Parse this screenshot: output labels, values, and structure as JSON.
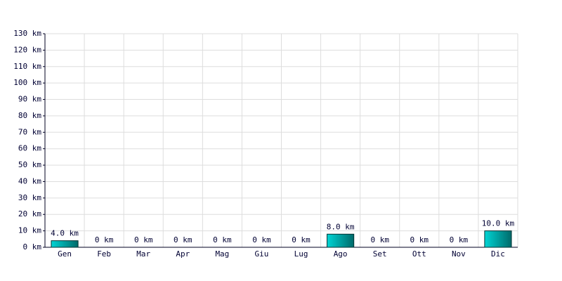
{
  "chart_data": {
    "type": "bar",
    "categories": [
      "Gen",
      "Feb",
      "Mar",
      "Apr",
      "Mag",
      "Giu",
      "Lug",
      "Ago",
      "Set",
      "Ott",
      "Nov",
      "Dic"
    ],
    "values": [
      4,
      0,
      0,
      0,
      0,
      0,
      0,
      8,
      0,
      0,
      0,
      10
    ],
    "value_labels": [
      "4.0 km",
      "0 km",
      "0 km",
      "0 km",
      "0 km",
      "0 km",
      "0 km",
      "8.0 km",
      "0 km",
      "0 km",
      "0 km",
      "10.0 km"
    ],
    "color": "#00d4d4",
    "ylim": [
      0,
      130
    ],
    "yticks": [
      {
        "value": 0,
        "label": "0 km"
      },
      {
        "value": 10,
        "label": "10 km"
      },
      {
        "value": 20,
        "label": "20 km"
      },
      {
        "value": 30,
        "label": "30 km"
      },
      {
        "value": 40,
        "label": "40 km"
      },
      {
        "value": 50,
        "label": "50 km"
      },
      {
        "value": 60,
        "label": "60 km"
      },
      {
        "value": 70,
        "label": "70 km"
      },
      {
        "value": 80,
        "label": "80 km"
      },
      {
        "value": 90,
        "label": "90 km"
      },
      {
        "value": 100,
        "label": "100 km"
      },
      {
        "value": 110,
        "label": "110 km"
      },
      {
        "value": 120,
        "label": "120 km"
      },
      {
        "value": 130,
        "label": "130 km"
      }
    ],
    "grid": true
  }
}
